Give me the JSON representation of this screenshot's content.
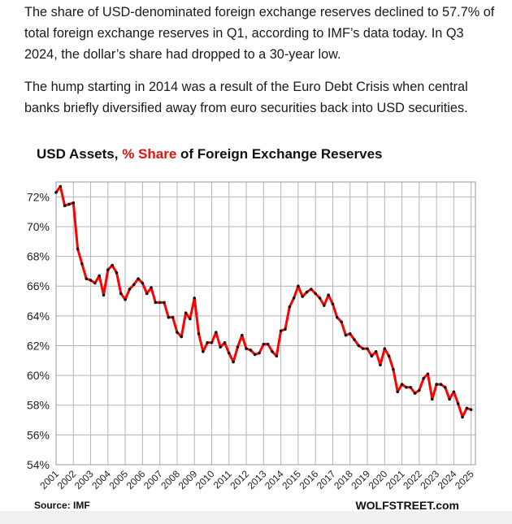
{
  "article": {
    "paragraph1": "The share of USD-denominated foreign exchange reserves declined to 57.7% of total foreign exchange reserves in Q1, according to IMF’s data today. In Q3 2024, the dollar’s share had dropped to a 30-year low.",
    "paragraph2": "The hump starting in 2014 was a result of the Euro Debt Crisis when central banks briefly diversified away from euro securities back into USD securities."
  },
  "chart_data": {
    "type": "line",
    "title_prefix": "USD Assets, ",
    "title_accent": "% Share",
    "title_suffix": " of Foreign Exchange Reserves",
    "source": "Source: IMF",
    "credit": "WOLFSTREET.com",
    "ylim": [
      54,
      73
    ],
    "yticks": [
      54,
      56,
      58,
      60,
      62,
      64,
      66,
      68,
      70,
      72
    ],
    "ytick_labels": [
      "54%",
      "56%",
      "58%",
      "60%",
      "62%",
      "64%",
      "66%",
      "68%",
      "70%",
      "72%"
    ],
    "xlim": [
      2001,
      2025.25
    ],
    "xtick_labels": [
      "2001",
      "2002",
      "2003",
      "2004",
      "2005",
      "2006",
      "2007",
      "2008",
      "2009",
      "2010",
      "2011",
      "2012",
      "2013",
      "2014",
      "2015",
      "2016",
      "2017",
      "2018",
      "2019",
      "2020",
      "2021",
      "2022",
      "2023",
      "2024",
      "2025"
    ],
    "grid": true,
    "line_color": "#ff0000",
    "marker_color": "#111111",
    "series": [
      {
        "x": [
          2001.0,
          2001.25,
          2001.5,
          2001.75,
          2002.0,
          2002.25,
          2002.5,
          2002.75,
          2003.0,
          2003.25,
          2003.5,
          2003.75,
          2004.0,
          2004.25,
          2004.5,
          2004.75,
          2005.0,
          2005.25,
          2005.5,
          2005.75,
          2006.0,
          2006.25,
          2006.5,
          2006.75,
          2007.0,
          2007.25,
          2007.5,
          2007.75,
          2008.0,
          2008.25,
          2008.5,
          2008.75,
          2009.0,
          2009.25,
          2009.5,
          2009.75,
          2010.0,
          2010.25,
          2010.5,
          2010.75,
          2011.0,
          2011.25,
          2011.5,
          2011.75,
          2012.0,
          2012.25,
          2012.5,
          2012.75,
          2013.0,
          2013.25,
          2013.5,
          2013.75,
          2014.0,
          2014.25,
          2014.5,
          2014.75,
          2015.0,
          2015.25,
          2015.5,
          2015.75,
          2016.0,
          2016.25,
          2016.5,
          2016.75,
          2017.0,
          2017.25,
          2017.5,
          2017.75,
          2018.0,
          2018.25,
          2018.5,
          2018.75,
          2019.0,
          2019.25,
          2019.5,
          2019.75,
          2020.0,
          2020.25,
          2020.5,
          2020.75,
          2021.0,
          2021.25,
          2021.5,
          2021.75,
          2022.0,
          2022.25,
          2022.5,
          2022.75,
          2023.0,
          2023.25,
          2023.5,
          2023.75,
          2024.0,
          2024.25,
          2024.5,
          2024.75,
          2025.0
        ],
        "values": [
          72.3,
          72.7,
          71.4,
          71.5,
          71.6,
          68.5,
          67.5,
          66.5,
          66.4,
          66.2,
          66.7,
          65.4,
          67.1,
          67.4,
          66.9,
          65.5,
          65.1,
          65.8,
          66.1,
          66.5,
          66.2,
          65.5,
          65.9,
          64.9,
          64.9,
          64.9,
          63.9,
          63.9,
          62.9,
          62.6,
          64.2,
          63.8,
          65.2,
          62.8,
          61.6,
          62.2,
          62.2,
          62.9,
          61.9,
          62.2,
          61.5,
          60.9,
          61.9,
          62.7,
          61.8,
          61.7,
          61.4,
          61.5,
          62.1,
          62.1,
          61.6,
          61.3,
          63.0,
          63.1,
          64.6,
          65.2,
          66.0,
          65.3,
          65.6,
          65.8,
          65.5,
          65.2,
          64.7,
          65.4,
          64.8,
          63.9,
          63.6,
          62.7,
          62.8,
          62.4,
          62.0,
          61.8,
          61.8,
          61.3,
          61.6,
          60.7,
          61.8,
          61.3,
          60.4,
          58.9,
          59.4,
          59.2,
          59.2,
          58.8,
          59.0,
          59.8,
          60.1,
          58.4,
          59.4,
          59.4,
          59.2,
          58.4,
          58.9,
          58.1,
          57.2,
          57.8,
          57.7
        ]
      }
    ]
  }
}
